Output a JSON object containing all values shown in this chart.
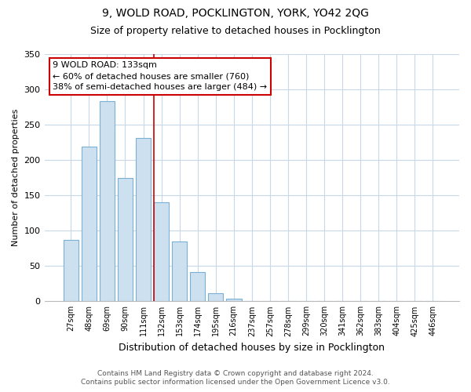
{
  "title": "9, WOLD ROAD, POCKLINGTON, YORK, YO42 2QG",
  "subtitle": "Size of property relative to detached houses in Pocklington",
  "xlabel": "Distribution of detached houses by size in Pocklington",
  "ylabel": "Number of detached properties",
  "bar_labels": [
    "27sqm",
    "48sqm",
    "69sqm",
    "90sqm",
    "111sqm",
    "132sqm",
    "153sqm",
    "174sqm",
    "195sqm",
    "216sqm",
    "237sqm",
    "257sqm",
    "278sqm",
    "299sqm",
    "320sqm",
    "341sqm",
    "362sqm",
    "383sqm",
    "404sqm",
    "425sqm",
    "446sqm"
  ],
  "bar_heights": [
    87,
    219,
    283,
    175,
    231,
    140,
    85,
    41,
    11,
    4,
    0,
    0,
    0,
    0,
    0,
    0,
    0,
    0,
    0,
    0,
    0
  ],
  "bar_color": "#cde0f0",
  "bar_edge_color": "#7ab0d4",
  "highlight_color": "#cc0000",
  "vline_index": 5,
  "annotation_title": "9 WOLD ROAD: 133sqm",
  "annotation_line1": "← 60% of detached houses are smaller (760)",
  "annotation_line2": "38% of semi-detached houses are larger (484) →",
  "annotation_box_facecolor": "#ffffff",
  "annotation_box_edgecolor": "#cc0000",
  "ylim": [
    0,
    350
  ],
  "yticks": [
    0,
    50,
    100,
    150,
    200,
    250,
    300,
    350
  ],
  "footer1": "Contains HM Land Registry data © Crown copyright and database right 2024.",
  "footer2": "Contains public sector information licensed under the Open Government Licence v3.0.",
  "bg_color": "#ffffff",
  "grid_color": "#c8d8e8",
  "title_fontsize": 10,
  "subtitle_fontsize": 9,
  "xlabel_fontsize": 9,
  "ylabel_fontsize": 8,
  "tick_fontsize": 7,
  "footer_fontsize": 6.5
}
